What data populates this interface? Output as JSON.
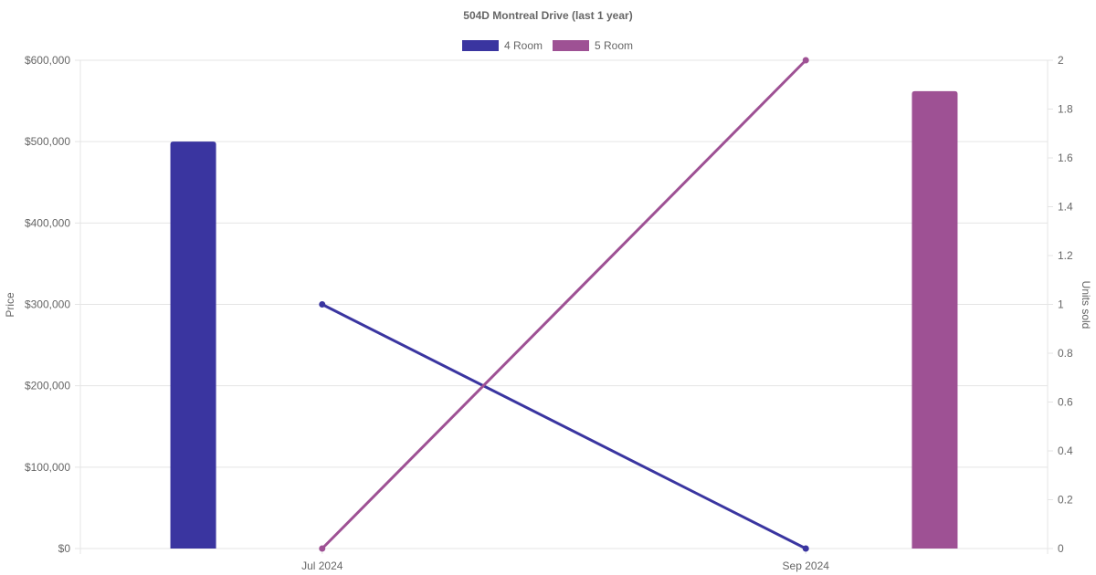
{
  "chart_data": {
    "type": "bar",
    "title": "504D Montreal Drive (last 1 year)",
    "categories": [
      "Jul 2024",
      "Sep 2024"
    ],
    "legend": {
      "position": "top",
      "items": [
        {
          "label": "4 Room",
          "color": "#3a35a0"
        },
        {
          "label": "5 Room",
          "color": "#9e5194"
        }
      ]
    },
    "y_left": {
      "label": "Price",
      "min": 0,
      "max": 600000,
      "ticks": [
        0,
        100000,
        200000,
        300000,
        400000,
        500000,
        600000
      ],
      "tick_labels": [
        "$0",
        "$100,000",
        "$200,000",
        "$300,000",
        "$400,000",
        "$500,000",
        "$600,000"
      ]
    },
    "y_right": {
      "label": "Units sold",
      "min": 0,
      "max": 2,
      "ticks": [
        0,
        0.2,
        0.4,
        0.6,
        0.8,
        1,
        1.2,
        1.4,
        1.6,
        1.8,
        2
      ],
      "tick_labels": [
        "0",
        "0.2",
        "0.4",
        "0.6",
        "0.8",
        "1",
        "1.2",
        "1.4",
        "1.6",
        "1.8",
        "2"
      ]
    },
    "grid": true,
    "bar_series": [
      {
        "name": "4 Room",
        "axis": "price",
        "color": "#3a35a0",
        "values": [
          500000,
          null
        ]
      },
      {
        "name": "5 Room",
        "axis": "price",
        "color": "#9e5194",
        "values": [
          null,
          562000
        ]
      }
    ],
    "line_series": [
      {
        "name": "4 Room",
        "axis": "units",
        "color": "#3a35a0",
        "values": [
          1,
          0
        ]
      },
      {
        "name": "5 Room",
        "axis": "units",
        "color": "#9e5194",
        "values": [
          0,
          2
        ]
      }
    ]
  }
}
